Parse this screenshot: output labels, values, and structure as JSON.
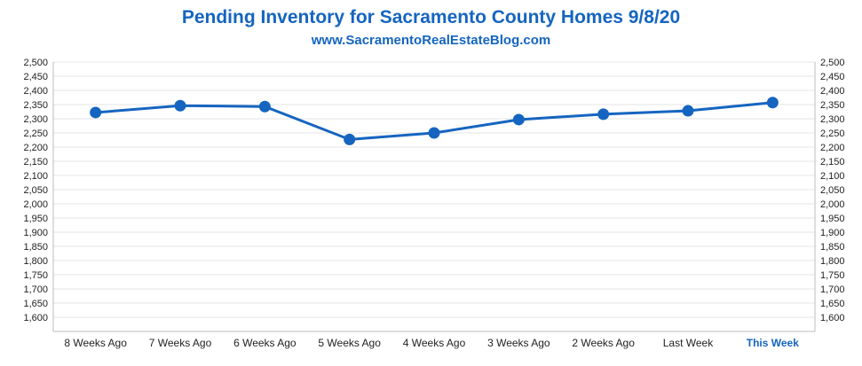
{
  "chart_data": {
    "type": "line",
    "title": "Pending Inventory for Sacramento County Homes 9/8/20",
    "subtitle": "www.SacramentoRealEstateBlog.com",
    "categories": [
      "8 Weeks Ago",
      "7 Weeks Ago",
      "6 Weeks Ago",
      "5 Weeks Ago",
      "4 Weeks Ago",
      "3 Weeks Ago",
      "2 Weeks Ago",
      "Last Week",
      "This Week"
    ],
    "highlight_category": "This Week",
    "series": [
      {
        "name": "Pending Inventory",
        "values": [
          2322,
          2346,
          2343,
          2227,
          2250,
          2297,
          2316,
          2328,
          2357
        ]
      }
    ],
    "ylim": [
      1550,
      2500
    ],
    "yticks": [
      1600,
      1650,
      1700,
      1750,
      1800,
      1850,
      1900,
      1950,
      2000,
      2050,
      2100,
      2150,
      2200,
      2250,
      2300,
      2350,
      2400,
      2450,
      2500
    ],
    "ytick_labels": [
      "1,600",
      "1,650",
      "1,700",
      "1,750",
      "1,800",
      "1,850",
      "1,900",
      "1,950",
      "2,000",
      "2,050",
      "2,100",
      "2,150",
      "2,200",
      "2,250",
      "2,300",
      "2,350",
      "2,400",
      "2,450",
      "2,500"
    ],
    "grid": true,
    "secondary_yaxis": true,
    "line_color": "#1565c0",
    "highlight_color": "#1565c0",
    "grid_color": "#e6e6e6",
    "axis_color": "#bdbdbd"
  }
}
